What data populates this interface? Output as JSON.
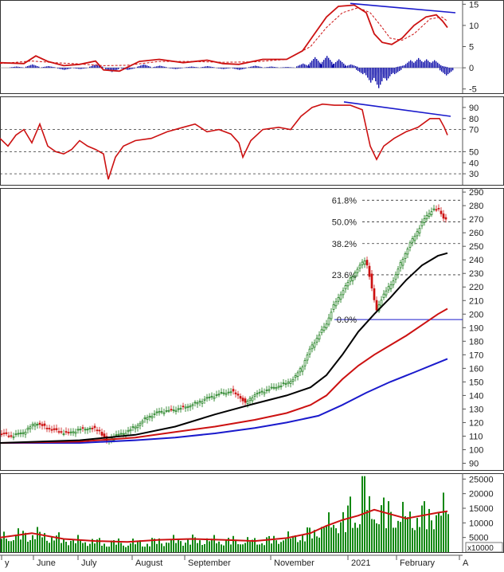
{
  "chart_data": [
    {
      "panel": "macd",
      "type": "line",
      "y_ticks": [
        "15",
        "10",
        "5",
        "0",
        "-5"
      ],
      "y_values": [
        15,
        10,
        5,
        0,
        -5
      ],
      "ylim": [
        -6,
        16
      ],
      "macd_line": [
        [
          0,
          1.2
        ],
        [
          30,
          1.0
        ],
        [
          45,
          2.8
        ],
        [
          60,
          1.5
        ],
        [
          80,
          0.5
        ],
        [
          100,
          0.8
        ],
        [
          120,
          1.6
        ],
        [
          130,
          -0.5
        ],
        [
          150,
          -0.8
        ],
        [
          175,
          1.5
        ],
        [
          200,
          2.0
        ],
        [
          230,
          1.2
        ],
        [
          260,
          1.8
        ],
        [
          280,
          1.0
        ],
        [
          300,
          0.8
        ],
        [
          330,
          2.0
        ],
        [
          360,
          2.0
        ],
        [
          380,
          4.0
        ],
        [
          395,
          8.0
        ],
        [
          410,
          12.0
        ],
        [
          425,
          14.5
        ],
        [
          445,
          14.8
        ],
        [
          460,
          13.0
        ],
        [
          470,
          8.0
        ],
        [
          480,
          6.0
        ],
        [
          492,
          5.5
        ],
        [
          505,
          7.0
        ],
        [
          520,
          10.0
        ],
        [
          535,
          12.0
        ],
        [
          548,
          12.5
        ],
        [
          556,
          11.0
        ],
        [
          562,
          9.5
        ]
      ],
      "signal_line": [
        [
          0,
          1.0
        ],
        [
          40,
          1.6
        ],
        [
          70,
          1.2
        ],
        [
          100,
          0.9
        ],
        [
          130,
          0.5
        ],
        [
          160,
          0.6
        ],
        [
          200,
          1.5
        ],
        [
          240,
          1.5
        ],
        [
          280,
          1.3
        ],
        [
          320,
          1.4
        ],
        [
          360,
          2.0
        ],
        [
          390,
          5.0
        ],
        [
          410,
          9.5
        ],
        [
          430,
          13.0
        ],
        [
          450,
          14.2
        ],
        [
          465,
          13.0
        ],
        [
          478,
          10.0
        ],
        [
          490,
          7.0
        ],
        [
          505,
          6.5
        ],
        [
          520,
          8.0
        ],
        [
          540,
          11.5
        ],
        [
          555,
          12.0
        ],
        [
          562,
          11.0
        ]
      ],
      "histogram": [
        [
          20,
          0.3
        ],
        [
          40,
          0.8
        ],
        [
          60,
          0.4
        ],
        [
          80,
          -0.5
        ],
        [
          100,
          -0.3
        ],
        [
          120,
          0.8
        ],
        [
          140,
          -1.0
        ],
        [
          160,
          -0.5
        ],
        [
          180,
          0.8
        ],
        [
          200,
          0.5
        ],
        [
          220,
          -0.3
        ],
        [
          240,
          0.3
        ],
        [
          260,
          0.4
        ],
        [
          280,
          -0.3
        ],
        [
          300,
          -0.5
        ],
        [
          320,
          0.5
        ],
        [
          340,
          0.3
        ],
        [
          360,
          0.2
        ],
        [
          380,
          1.0
        ],
        [
          395,
          2.5
        ],
        [
          410,
          2.8
        ],
        [
          425,
          2.0
        ],
        [
          440,
          0.8
        ],
        [
          455,
          -1.5
        ],
        [
          465,
          -3.5
        ],
        [
          475,
          -4.8
        ],
        [
          485,
          -3.0
        ],
        [
          495,
          -1.5
        ],
        [
          505,
          0.5
        ],
        [
          515,
          1.8
        ],
        [
          525,
          2.3
        ],
        [
          535,
          2.0
        ],
        [
          545,
          1.8
        ],
        [
          553,
          0.5
        ],
        [
          560,
          -1.8
        ]
      ],
      "colors": {
        "macd": "#cc1111",
        "signal": "#cc1111",
        "histogram": "#1111aa",
        "trend": "#1a1acc"
      },
      "divergence": [
        [
          440,
          15.2
        ],
        [
          572,
          13.0
        ]
      ]
    },
    {
      "panel": "rsi",
      "type": "line",
      "y_ticks": [
        "90",
        "80",
        "70",
        "50",
        "40",
        "30"
      ],
      "y_values": [
        90,
        80,
        70,
        50,
        40,
        30
      ],
      "ylim": [
        20,
        100
      ],
      "grid": [
        70,
        50,
        30
      ],
      "rsi_line": [
        [
          0,
          62
        ],
        [
          10,
          55
        ],
        [
          20,
          65
        ],
        [
          30,
          70
        ],
        [
          40,
          58
        ],
        [
          50,
          75
        ],
        [
          60,
          55
        ],
        [
          70,
          50
        ],
        [
          80,
          48
        ],
        [
          90,
          52
        ],
        [
          100,
          60
        ],
        [
          110,
          55
        ],
        [
          120,
          52
        ],
        [
          130,
          48
        ],
        [
          136,
          25
        ],
        [
          145,
          45
        ],
        [
          155,
          55
        ],
        [
          170,
          60
        ],
        [
          190,
          62
        ],
        [
          210,
          68
        ],
        [
          230,
          72
        ],
        [
          245,
          75
        ],
        [
          260,
          68
        ],
        [
          275,
          70
        ],
        [
          290,
          66
        ],
        [
          300,
          58
        ],
        [
          305,
          45
        ],
        [
          315,
          60
        ],
        [
          330,
          70
        ],
        [
          350,
          72
        ],
        [
          365,
          70
        ],
        [
          378,
          82
        ],
        [
          392,
          90
        ],
        [
          405,
          93
        ],
        [
          420,
          92
        ],
        [
          440,
          92
        ],
        [
          455,
          88
        ],
        [
          465,
          55
        ],
        [
          473,
          43
        ],
        [
          482,
          55
        ],
        [
          495,
          62
        ],
        [
          510,
          68
        ],
        [
          525,
          72
        ],
        [
          540,
          80
        ],
        [
          552,
          80
        ],
        [
          558,
          72
        ],
        [
          562,
          65
        ]
      ],
      "colors": {
        "rsi": "#cc1111",
        "trend": "#1a1acc"
      },
      "divergence": [
        [
          432,
          95
        ],
        [
          566,
          82
        ]
      ]
    },
    {
      "panel": "price",
      "type": "line",
      "y_ticks": [
        "290",
        "280",
        "270",
        "260",
        "250",
        "240",
        "230",
        "220",
        "210",
        "200",
        "190",
        "180",
        "170",
        "160",
        "150",
        "140",
        "130",
        "120",
        "110",
        "100",
        "90"
      ],
      "y_values": [
        290,
        280,
        270,
        260,
        250,
        240,
        230,
        220,
        210,
        200,
        190,
        180,
        170,
        160,
        150,
        140,
        130,
        120,
        110,
        100,
        90
      ],
      "ylim": [
        85,
        293
      ],
      "fibonacci": [
        {
          "label": "61.8%",
          "value": 284
        },
        {
          "label": "50.0%",
          "value": 268
        },
        {
          "label": "38.2%",
          "value": 252
        },
        {
          "label": "23.6%",
          "value": 229
        },
        {
          "label": "0.0%",
          "value": 196
        }
      ],
      "price_close": [
        [
          0,
          112
        ],
        [
          15,
          110
        ],
        [
          30,
          113
        ],
        [
          45,
          120
        ],
        [
          55,
          117
        ],
        [
          70,
          114
        ],
        [
          85,
          112
        ],
        [
          100,
          115
        ],
        [
          115,
          116
        ],
        [
          125,
          114
        ],
        [
          135,
          105
        ],
        [
          142,
          110
        ],
        [
          155,
          112
        ],
        [
          170,
          117
        ],
        [
          185,
          124
        ],
        [
          200,
          128
        ],
        [
          215,
          129
        ],
        [
          230,
          131
        ],
        [
          245,
          134
        ],
        [
          260,
          138
        ],
        [
          275,
          141
        ],
        [
          290,
          143
        ],
        [
          300,
          140
        ],
        [
          308,
          134
        ],
        [
          318,
          140
        ],
        [
          330,
          143
        ],
        [
          345,
          146
        ],
        [
          360,
          149
        ],
        [
          370,
          153
        ],
        [
          380,
          162
        ],
        [
          390,
          175
        ],
        [
          400,
          184
        ],
        [
          410,
          193
        ],
        [
          418,
          205
        ],
        [
          428,
          215
        ],
        [
          440,
          226
        ],
        [
          450,
          234
        ],
        [
          458,
          240
        ],
        [
          462,
          235
        ],
        [
          468,
          215
        ],
        [
          473,
          203
        ],
        [
          478,
          210
        ],
        [
          486,
          218
        ],
        [
          495,
          226
        ],
        [
          505,
          240
        ],
        [
          515,
          252
        ],
        [
          525,
          262
        ],
        [
          535,
          272
        ],
        [
          543,
          277
        ],
        [
          552,
          277
        ],
        [
          558,
          270
        ],
        [
          562,
          270
        ]
      ],
      "sma_black": [
        [
          0,
          105
        ],
        [
          100,
          107
        ],
        [
          170,
          111
        ],
        [
          220,
          117
        ],
        [
          270,
          126
        ],
        [
          320,
          134
        ],
        [
          360,
          140
        ],
        [
          390,
          146
        ],
        [
          410,
          155
        ],
        [
          430,
          170
        ],
        [
          450,
          187
        ],
        [
          470,
          200
        ],
        [
          490,
          212
        ],
        [
          510,
          225
        ],
        [
          530,
          236
        ],
        [
          550,
          243
        ],
        [
          562,
          245
        ]
      ],
      "sma_red": [
        [
          0,
          105
        ],
        [
          100,
          106
        ],
        [
          170,
          109
        ],
        [
          220,
          113
        ],
        [
          270,
          117
        ],
        [
          320,
          122
        ],
        [
          360,
          127
        ],
        [
          390,
          133
        ],
        [
          410,
          140
        ],
        [
          430,
          152
        ],
        [
          450,
          162
        ],
        [
          470,
          170
        ],
        [
          490,
          177
        ],
        [
          510,
          184
        ],
        [
          530,
          192
        ],
        [
          550,
          200
        ],
        [
          562,
          204
        ]
      ],
      "sma_blue": [
        [
          0,
          105
        ],
        [
          100,
          105
        ],
        [
          170,
          107
        ],
        [
          220,
          109
        ],
        [
          270,
          112
        ],
        [
          320,
          116
        ],
        [
          360,
          120
        ],
        [
          400,
          125
        ],
        [
          430,
          133
        ],
        [
          460,
          142
        ],
        [
          490,
          150
        ],
        [
          520,
          157
        ],
        [
          545,
          163
        ],
        [
          562,
          167
        ]
      ],
      "colors": {
        "up": "#117711",
        "down": "#cc1111",
        "black": "#000000",
        "red": "#cc1111",
        "blue": "#1a1acc"
      }
    },
    {
      "panel": "volume",
      "type": "bar",
      "y_ticks": [
        "25000",
        "20000",
        "15000",
        "10000",
        "5000"
      ],
      "y_values": [
        25000,
        20000,
        15000,
        10000,
        5000
      ],
      "ylim": [
        0,
        27000
      ],
      "unit": "x10000",
      "volume_ma": [
        [
          0,
          5000
        ],
        [
          40,
          6500
        ],
        [
          80,
          4500
        ],
        [
          120,
          3800
        ],
        [
          160,
          3500
        ],
        [
          200,
          4200
        ],
        [
          240,
          4500
        ],
        [
          280,
          4200
        ],
        [
          320,
          3800
        ],
        [
          360,
          4800
        ],
        [
          390,
          6500
        ],
        [
          410,
          9000
        ],
        [
          430,
          11000
        ],
        [
          450,
          12500
        ],
        [
          470,
          14500
        ],
        [
          490,
          13000
        ],
        [
          510,
          11500
        ],
        [
          530,
          12500
        ],
        [
          550,
          13500
        ],
        [
          562,
          14000
        ]
      ],
      "colors": {
        "bars": "#118811",
        "ma": "#cc1111"
      }
    }
  ],
  "x_axis": {
    "labels": [
      "y",
      "June",
      "July",
      "August",
      "September",
      "November",
      "2021",
      "February",
      "A"
    ],
    "positions": [
      6,
      46,
      102,
      170,
      236,
      344,
      441,
      502,
      581
    ]
  }
}
